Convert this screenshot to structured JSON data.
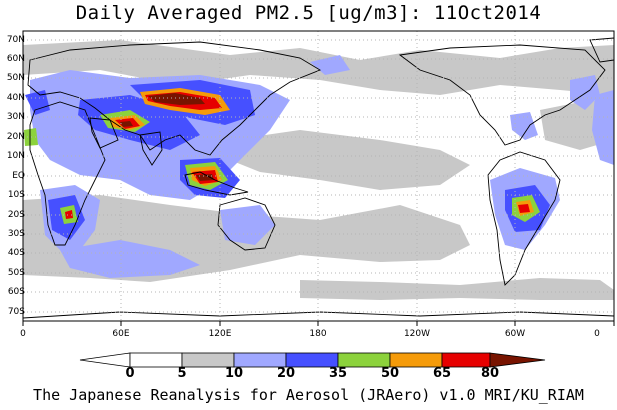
{
  "title": "Daily Averaged PM2.5 [ug/m3]: 11Oct2014",
  "footer": "The Japanese Reanalysis for Aerosol (JRAero) v1.0 MRI/KU_RIAM",
  "map": {
    "variable": "PM2.5",
    "units": "ug/m3",
    "date": "11Oct2014",
    "lon_range": [
      0,
      360
    ],
    "lat_range": [
      -75,
      75
    ],
    "gridlines": "dotted"
  },
  "lat_labels": [
    "70N",
    "60N",
    "50N",
    "40N",
    "30N",
    "20N",
    "10N",
    "EQ",
    "10S",
    "20S",
    "30S",
    "40S",
    "50S",
    "60S",
    "70S"
  ],
  "lon_labels": [
    "0",
    "60E",
    "120E",
    "180",
    "120W",
    "60W",
    "0"
  ],
  "colorbar": {
    "levels": [
      "0",
      "5",
      "10",
      "20",
      "35",
      "50",
      "65",
      "80"
    ],
    "colors": [
      "#ffffff",
      "#c8c8c8",
      "#a0a8ff",
      "#4650ff",
      "#8cd23c",
      "#f59b0a",
      "#e60000",
      "#781400"
    ]
  },
  "colors": {
    "land_outline": "#000000",
    "grid": "#b4b4b4"
  }
}
